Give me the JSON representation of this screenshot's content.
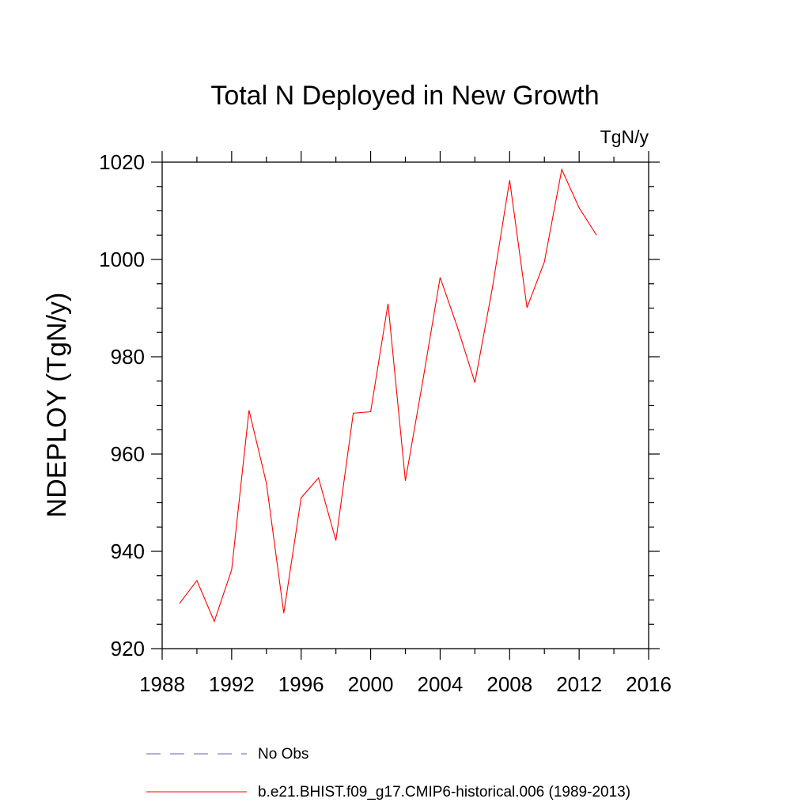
{
  "chart_data": {
    "type": "line",
    "title": "Total N Deployed in New Growth",
    "units_label": "TgN/y",
    "xlabel": "",
    "ylabel": "NDEPLOY  (TgN/y)",
    "xlim": [
      1988,
      2016
    ],
    "ylim": [
      920,
      1020
    ],
    "x_major_ticks": [
      1988,
      1992,
      1996,
      2000,
      2004,
      2008,
      2012,
      2016
    ],
    "x_minor_step": 2,
    "y_major_ticks": [
      920,
      940,
      960,
      980,
      1000,
      1020
    ],
    "y_minor_step": 5,
    "grid": false,
    "legend_position": "bottom",
    "colors": {
      "series": "#ff0000",
      "obs": "#6060c0",
      "axis": "#000000"
    },
    "series": [
      {
        "name": "b.e21.BHIST.f09_g17.CMIP6-historical.006 (1989-2013)",
        "style": "solid",
        "x": [
          1989,
          1990,
          1991,
          1992,
          1993,
          1994,
          1995,
          1996,
          1997,
          1998,
          1999,
          2000,
          2001,
          2002,
          2003,
          2004,
          2005,
          2006,
          2007,
          2008,
          2009,
          2010,
          2011,
          2012,
          2013
        ],
        "values": [
          929.3,
          934.0,
          925.6,
          936.2,
          969.0,
          954.0,
          927.3,
          951.0,
          955.1,
          942.2,
          968.4,
          968.7,
          990.9,
          954.5,
          975.0,
          996.3,
          986.0,
          974.7,
          994.0,
          1016.3,
          990.1,
          999.5,
          1018.5,
          1010.6,
          1005.0
        ]
      }
    ],
    "legend": [
      {
        "label": "No Obs",
        "style": "dashed",
        "color_key": "obs"
      },
      {
        "label": "b.e21.BHIST.f09_g17.CMIP6-historical.006 (1989-2013)",
        "style": "solid",
        "color_key": "series"
      }
    ]
  }
}
